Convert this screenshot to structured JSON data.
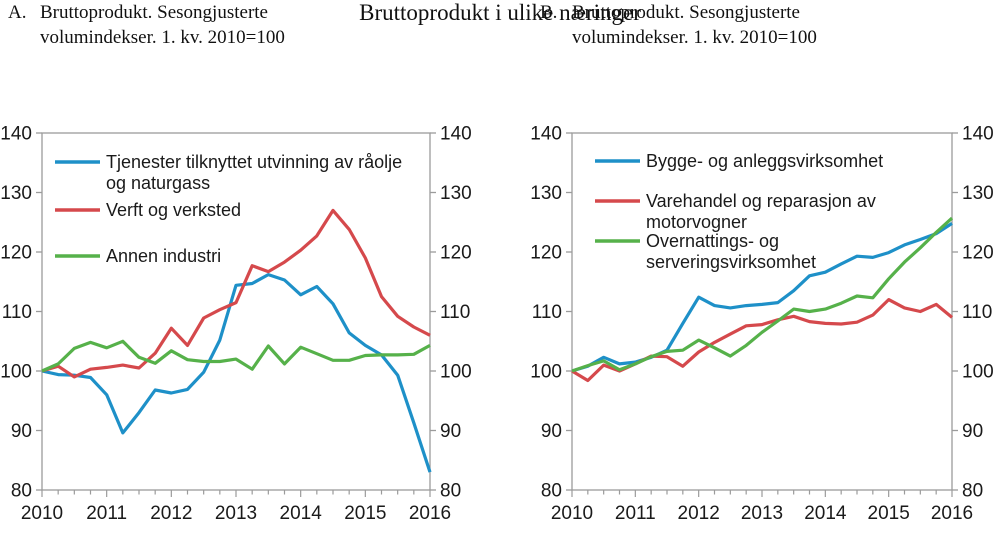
{
  "page": {
    "title": "Bruttoprodukt i ulike næringer",
    "background": "#ffffff",
    "text_color": "#1a1a1a",
    "axis_color": "#9b9b9b"
  },
  "panels": [
    {
      "label": "A.",
      "heading_lines": [
        "Bruttoprodukt. Sesongjusterte",
        "volumindekser. 1. kv. 2010=100"
      ]
    },
    {
      "label": "B.",
      "heading_lines": [
        "Bruttoprodukt. Sesongjusterte",
        "volumindekser. 1. kv. 2010=100"
      ]
    }
  ],
  "chart_data": [
    {
      "type": "line",
      "panel": "A",
      "title": "Bruttoprodukt. Sesongjusterte volumindekser. 1. kv. 2010=100",
      "xlabel": "",
      "ylabel": "",
      "x_unit": "quarter",
      "x_range": [
        "2010 Q1",
        "2016 Q1"
      ],
      "x_tick_labels": [
        "2010",
        "2011",
        "2012",
        "2013",
        "2014",
        "2015",
        "2016"
      ],
      "x_minor_ticks": "quarterly",
      "ylim": [
        80,
        140
      ],
      "y_ticks": [
        80,
        90,
        100,
        110,
        120,
        130,
        140
      ],
      "y_axis_sides": "both",
      "grid": false,
      "legend_position": "top-left-inside",
      "series": [
        {
          "name": "Tjenester tilknyttet utvinning av råolje og naturgass",
          "legend_lines": [
            "Tjenester tilknyttet utvinning av råolje",
            "og naturgass"
          ],
          "color": "#1e90c8",
          "values": [
            100,
            99.4,
            99.3,
            98.9,
            96,
            89.6,
            93,
            96.8,
            96.3,
            96.9,
            99.8,
            105.2,
            114.4,
            114.7,
            116.2,
            115.3,
            112.8,
            114.2,
            111.3,
            106.4,
            104.3,
            102.7,
            99.3,
            91.3,
            83
          ]
        },
        {
          "name": "Verft og verksted",
          "legend_lines": [
            "Verft og verksted"
          ],
          "color": "#d5494c",
          "values": [
            100,
            100.8,
            99,
            100.3,
            100.6,
            101,
            100.5,
            103,
            107.2,
            104.3,
            108.9,
            110.3,
            111.5,
            117.7,
            116.7,
            118.3,
            120.3,
            122.7,
            127,
            123.8,
            119,
            112.5,
            109.2,
            107.4,
            106
          ]
        },
        {
          "name": "Annen industri",
          "legend_lines": [
            "Annen industri"
          ],
          "color": "#56b14a",
          "values": [
            100,
            101.2,
            103.8,
            104.8,
            103.9,
            105,
            102.3,
            101.3,
            103.4,
            101.9,
            101.6,
            101.6,
            102,
            100.3,
            104.2,
            101.2,
            104,
            102.9,
            101.8,
            101.8,
            102.6,
            102.7,
            102.7,
            102.8,
            104.3
          ]
        }
      ]
    },
    {
      "type": "line",
      "panel": "B",
      "title": "Bruttoprodukt. Sesongjusterte volumindekser. 1. kv. 2010=100",
      "xlabel": "",
      "ylabel": "",
      "x_unit": "quarter",
      "x_range": [
        "2010 Q1",
        "2016 Q1"
      ],
      "x_tick_labels": [
        "2010",
        "2011",
        "2012",
        "2013",
        "2014",
        "2015",
        "2016"
      ],
      "x_minor_ticks": "quarterly",
      "ylim": [
        80,
        140
      ],
      "y_ticks": [
        80,
        90,
        100,
        110,
        120,
        130,
        140
      ],
      "y_axis_sides": "both",
      "grid": false,
      "legend_position": "top-left-inside",
      "series": [
        {
          "name": "Bygge- og anleggsvirksomhet",
          "legend_lines": [
            "Bygge- og anleggsvirksomhet"
          ],
          "color": "#1e90c8",
          "values": [
            100,
            100.8,
            102.3,
            101.2,
            101.5,
            102.3,
            103.5,
            108,
            112.4,
            111,
            110.6,
            111,
            111.2,
            111.5,
            113.5,
            116,
            116.6,
            118,
            119.3,
            119.1,
            119.9,
            121.2,
            122.1,
            123.1,
            124.8
          ]
        },
        {
          "name": "Varehandel og reparasjon av motorvogner",
          "legend_lines": [
            "Varehandel og reparasjon av",
            "motorvogner"
          ],
          "color": "#d5494c",
          "values": [
            100,
            98.4,
            101,
            100,
            101.2,
            102.5,
            102.4,
            100.8,
            103.2,
            104.8,
            106.2,
            107.6,
            107.8,
            108.6,
            109.2,
            108.3,
            108,
            107.9,
            108.2,
            109.4,
            112,
            110.6,
            110,
            111.2,
            109
          ]
        },
        {
          "name": "Overnattings- og serveringsvirksomhet",
          "legend_lines": [
            "Overnattings- og",
            "serveringsvirksomhet"
          ],
          "color": "#56b14a",
          "values": [
            100,
            100.9,
            101.7,
            100.2,
            101.2,
            102.4,
            103.3,
            103.5,
            105.2,
            103.9,
            102.5,
            104.3,
            106.5,
            108.4,
            110.4,
            110,
            110.4,
            111.4,
            112.6,
            112.3,
            115.5,
            118.3,
            120.7,
            123.3,
            125.7
          ]
        }
      ]
    }
  ]
}
